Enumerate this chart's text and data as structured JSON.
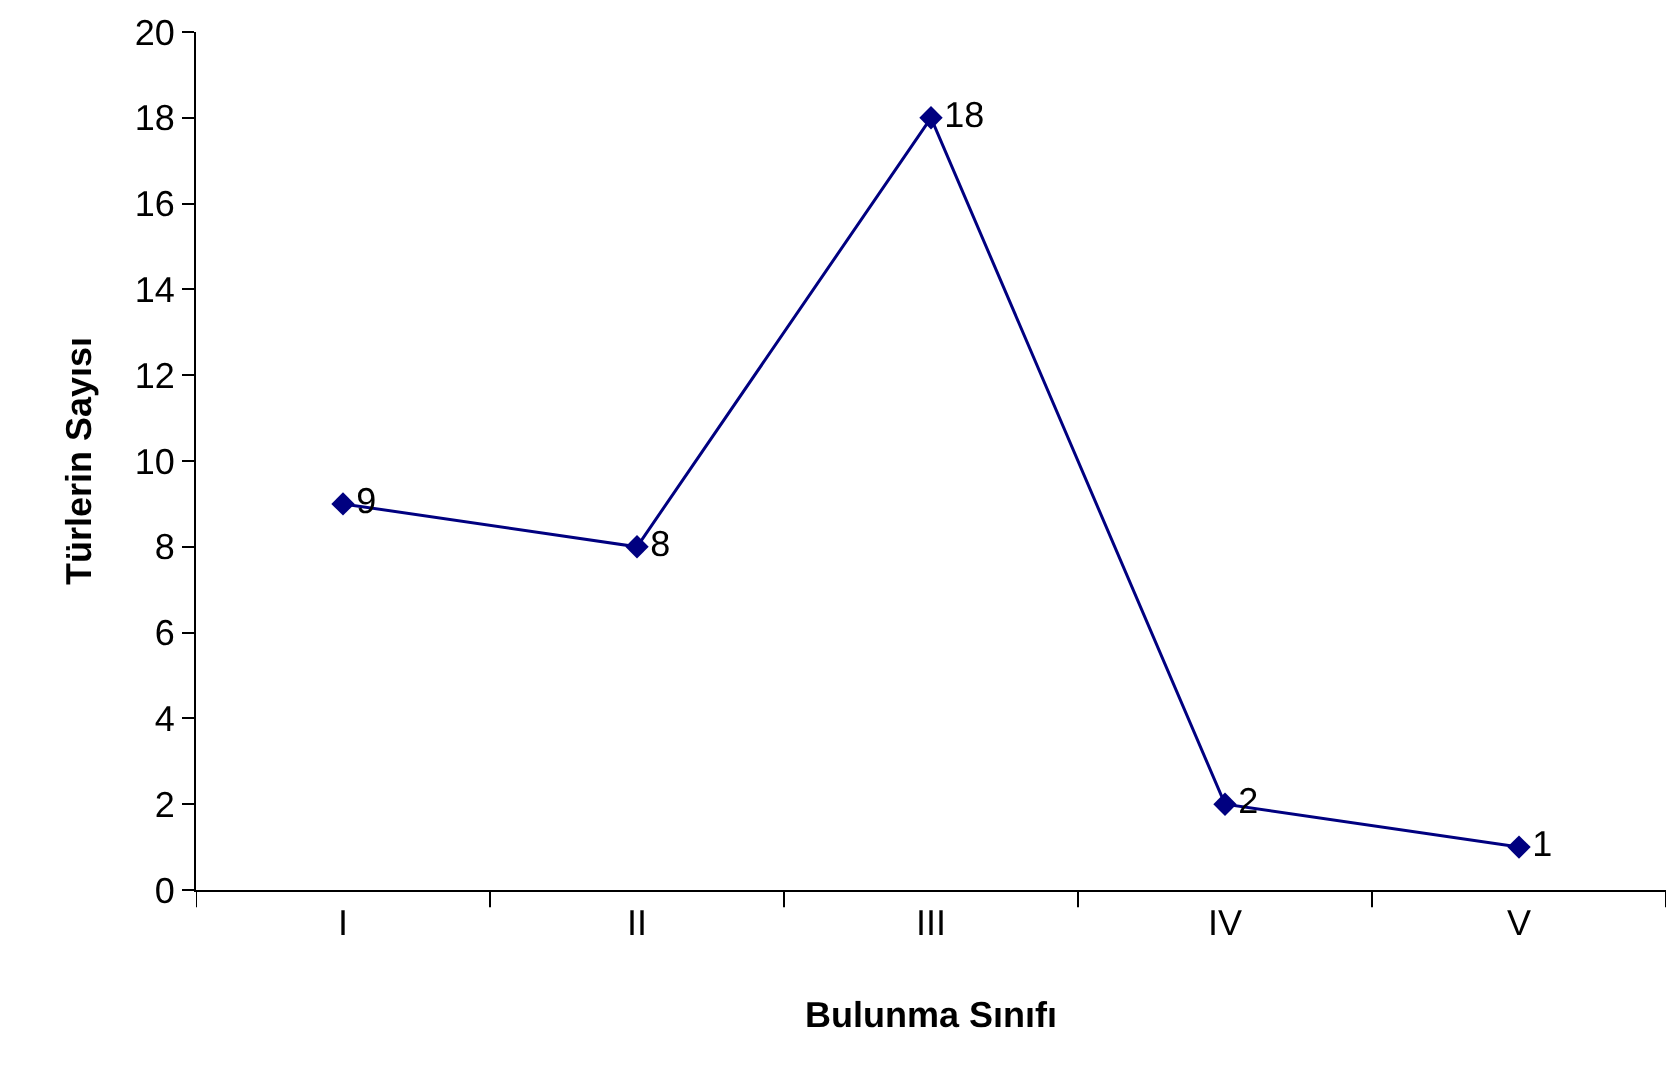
{
  "chart_data": {
    "type": "line",
    "xlabel": "Bulunma Sınıfı",
    "ylabel": "Türlerin Sayısı",
    "categories": [
      "I",
      "II",
      "III",
      "IV",
      "V"
    ],
    "values": [
      9,
      8,
      18,
      2,
      1
    ],
    "color": "#000080",
    "marker": "diamond",
    "line_style": "solid",
    "data_labels": true,
    "ylim": [
      0,
      20
    ],
    "yticks": [
      0,
      2,
      4,
      6,
      8,
      10,
      12,
      14,
      16,
      18,
      20
    ],
    "grid": false
  }
}
